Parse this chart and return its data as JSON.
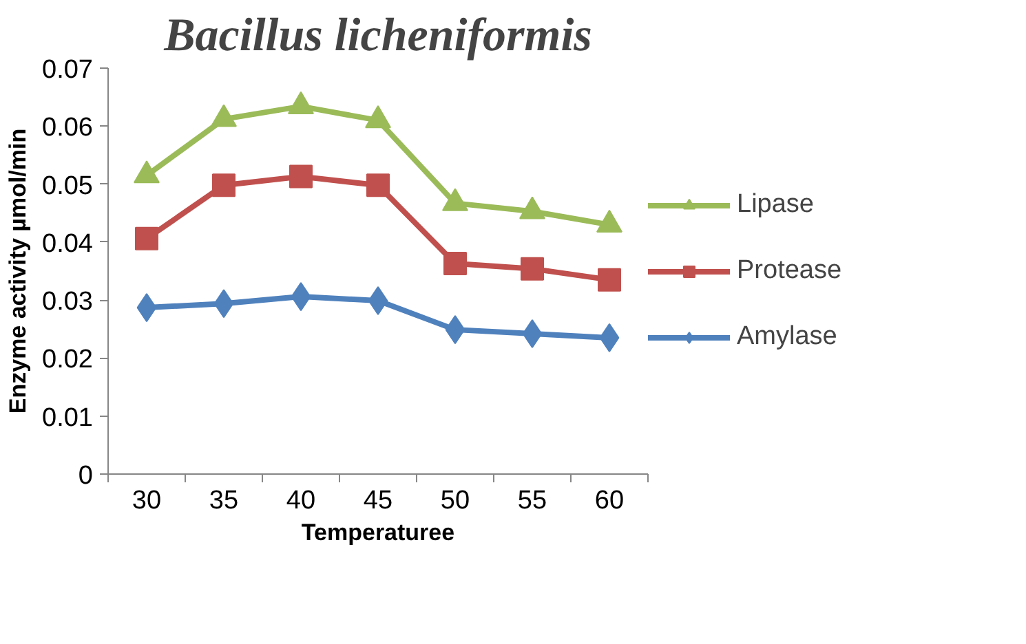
{
  "chart_data": {
    "type": "line",
    "title": "Bacillus licheniformis",
    "xlabel": "Temperaturee",
    "ylabel": "Enzyme activity µmol/min",
    "categories": [
      "30",
      "35",
      "40",
      "45",
      "50",
      "55",
      "60"
    ],
    "series": [
      {
        "name": "Lipase",
        "color": "#9bbb59",
        "marker": "triangle",
        "values": [
          0.0515,
          0.0612,
          0.0634,
          0.061,
          0.0467,
          0.0453,
          0.043
        ]
      },
      {
        "name": "Protease",
        "color": "#c0504d",
        "marker": "square",
        "values": [
          0.0406,
          0.0498,
          0.0513,
          0.0498,
          0.0363,
          0.0354,
          0.0335
        ]
      },
      {
        "name": "Amylase",
        "color": "#4f81bd",
        "marker": "diamond",
        "values": [
          0.0287,
          0.0294,
          0.0306,
          0.0299,
          0.0249,
          0.0242,
          0.0235
        ]
      }
    ],
    "ylim": [
      0,
      0.07
    ],
    "yticks": [
      0,
      0.01,
      0.02,
      0.03,
      0.04,
      0.05,
      0.06,
      0.07
    ],
    "grid": false,
    "legend": "right"
  }
}
